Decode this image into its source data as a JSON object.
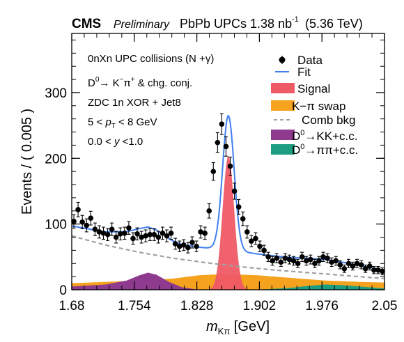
{
  "header": {
    "experiment": "CMS",
    "status": "Preliminary",
    "dataset_prefix": "PbPb UPCs 1.38 nb",
    "dataset_exp": "-1",
    "energy": "(5.36 TeV)"
  },
  "annotations": {
    "line1": "0nXn UPC collisions (N +γ)",
    "line2_d": "D",
    "line2_d_sup": "0",
    "line2_rest": "→ K",
    "line2_k_sup": "−",
    "line2_pi": "π",
    "line2_pi_sup": "+",
    "line2_tail": " & chg. conj.",
    "line3": "ZDC 1n XOR + Jet8",
    "line4_pre": "5 < ",
    "line4_p": "p",
    "line4_sub": "T",
    "line4_post": " < 8 GeV",
    "line5_pre": "0.0 < ",
    "line5_y": "y",
    "line5_post": " <1.0"
  },
  "legend": {
    "data": "Data",
    "fit": "Fit",
    "signal": "Signal",
    "swap": "K−π swap",
    "comb": "Comb bkg",
    "kk_pre": "D",
    "kk_sup": "0",
    "kk_post": "→KK+c.c.",
    "pipi_pre": "D",
    "pipi_sup": "0",
    "pipi_post": "→ππ+c.c."
  },
  "axes": {
    "ylabel": "Events / ( 0.005 )",
    "xlabel_m": "m",
    "xlabel_sub": "Kπ",
    "xlabel_unit": " [GeV]"
  },
  "colors": {
    "fit": "#3f7fef",
    "signal": "#ee5a66",
    "swap": "#f5a21e",
    "comb": "#a0a0a0",
    "kk": "#8e3a8e",
    "pipi": "#1e9e80",
    "data": "#000000"
  },
  "chart_data": {
    "type": "scatter",
    "xlabel": "m_Kπ [GeV]",
    "ylabel": "Events / ( 0.005 )",
    "xlim": [
      1.68,
      2.05
    ],
    "ylim": [
      0,
      390
    ],
    "xticks": [
      "1.68",
      "1.754",
      "1.828",
      "1.902",
      "1.976",
      "2.05"
    ],
    "yticks": [
      "0",
      "100",
      "200",
      "300"
    ],
    "data_x": [
      1.6825,
      1.6875,
      1.6925,
      1.6975,
      1.7025,
      1.7075,
      1.7125,
      1.7175,
      1.7225,
      1.7275,
      1.7325,
      1.7375,
      1.7425,
      1.7475,
      1.7525,
      1.7575,
      1.7625,
      1.7675,
      1.7725,
      1.7775,
      1.7825,
      1.7875,
      1.7925,
      1.7975,
      1.8025,
      1.8075,
      1.8125,
      1.8175,
      1.8225,
      1.8275,
      1.8325,
      1.8375,
      1.8425,
      1.8475,
      1.8525,
      1.8575,
      1.8625,
      1.8675,
      1.8725,
      1.8775,
      1.8825,
      1.8875,
      1.8925,
      1.8975,
      1.9025,
      1.9075,
      1.9125,
      1.9175,
      1.9225,
      1.9275,
      1.9325,
      1.9375,
      1.9425,
      1.9475,
      1.9525,
      1.9575,
      1.9625,
      1.9675,
      1.9725,
      1.9775,
      1.9825,
      1.9875,
      1.9925,
      1.9975,
      2.0025,
      2.0075,
      2.0125,
      2.0175,
      2.0225,
      2.0275,
      2.0325,
      2.0375,
      2.0425,
      2.0475
    ],
    "data_y": [
      104,
      122,
      103,
      98,
      109,
      92,
      88,
      86,
      84,
      92,
      80,
      85,
      86,
      94,
      78,
      85,
      80,
      82,
      84,
      84,
      80,
      86,
      82,
      86,
      70,
      66,
      68,
      64,
      72,
      66,
      88,
      86,
      120,
      180,
      224,
      252,
      218,
      188,
      150,
      126,
      108,
      88,
      74,
      78,
      66,
      60,
      50,
      44,
      48,
      42,
      48,
      46,
      44,
      40,
      50,
      44,
      46,
      40,
      44,
      50,
      48,
      42,
      44,
      38,
      32,
      40,
      36,
      40,
      38,
      32,
      36,
      30,
      30,
      28
    ],
    "series": [
      {
        "name": "Fit",
        "shape": "curve"
      },
      {
        "name": "Signal",
        "shape": "gaussian",
        "mean": 1.8653,
        "peak": 204,
        "sigma": 0.0068
      },
      {
        "name": "K−π swap",
        "shape": "band",
        "x": [
          1.68,
          1.72,
          1.76,
          1.8,
          1.83,
          1.86,
          1.9,
          1.94,
          1.98,
          2.02,
          2.05
        ],
        "y": [
          10,
          12,
          14,
          17,
          22,
          24,
          22,
          18,
          14,
          12,
          11
        ]
      },
      {
        "name": "Comb bkg",
        "shape": "dashed",
        "x": [
          1.68,
          1.72,
          1.76,
          1.8,
          1.84,
          1.88,
          1.92,
          1.96,
          2.0,
          2.05
        ],
        "y": [
          82,
          68,
          57,
          48,
          41,
          35,
          30,
          26,
          22,
          17
        ]
      },
      {
        "name": "D0→KK+c.c.",
        "shape": "band",
        "x": [
          1.68,
          1.72,
          1.745,
          1.76,
          1.77,
          1.78,
          1.795,
          1.81,
          1.83
        ],
        "y": [
          5,
          8,
          14,
          22,
          26,
          23,
          12,
          4,
          0
        ]
      },
      {
        "name": "D0→ππ+c.c.",
        "shape": "band",
        "x": [
          1.9,
          1.94,
          1.96,
          1.98,
          2.0,
          2.03,
          2.05
        ],
        "y": [
          0,
          3,
          6,
          8,
          7,
          4,
          2
        ]
      }
    ]
  }
}
